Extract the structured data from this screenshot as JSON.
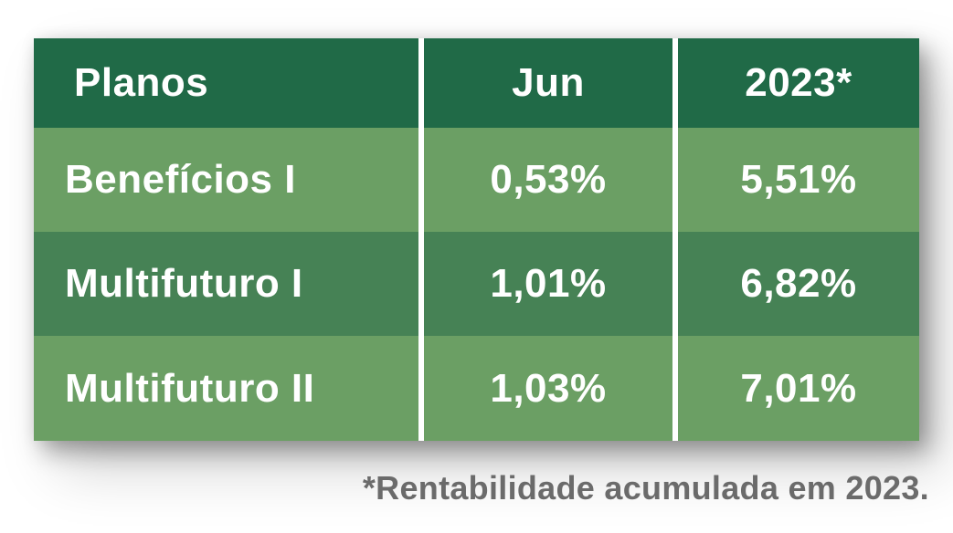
{
  "chart_data": {
    "type": "table",
    "columns": [
      "Planos",
      "Jun",
      "2023*"
    ],
    "rows": [
      [
        "Benefícios I",
        "0,53%",
        "5,51%"
      ],
      [
        "Multifuturo I",
        "1,01%",
        "6,82%"
      ],
      [
        "Multifuturo II",
        "1,03%",
        "7,01%"
      ]
    ],
    "values_jun_pct": [
      0.53,
      1.01,
      1.03
    ],
    "values_2023_accumulated_pct": [
      5.51,
      6.82,
      7.01
    ],
    "footnote": "*Rentabilidade acumulada em 2023.",
    "legend_position": "none",
    "grid": false
  },
  "colors": {
    "header_bg": "#206a47",
    "row_light_bg": "#6b9f64",
    "row_medium_bg": "#468255",
    "cell_text": "#ffffff",
    "divider": "#ffffff",
    "footnote_text": "#6b6b6b",
    "page_bg": "#ffffff"
  }
}
